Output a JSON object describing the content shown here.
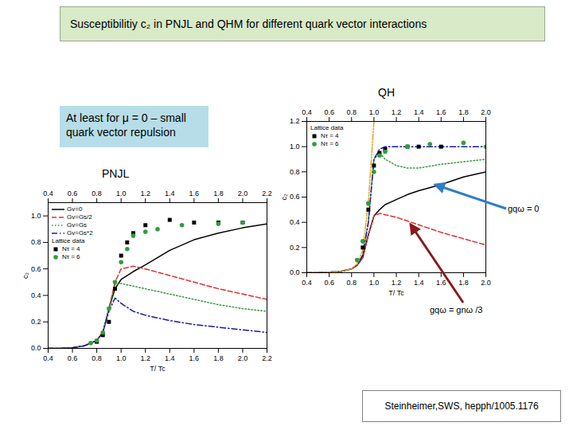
{
  "slide": {
    "title": "Susceptibilitiy c₂ in PNJL and QHM for different quark vector interactions",
    "note": "At least for μ = 0 – small quark vector repulsion",
    "citation": "Steinheimer,SWS,  hepph/1005.1176"
  },
  "chart_data": [
    {
      "type": "line",
      "title": "QH",
      "x_label": "T/ Tc",
      "y_label": "c₂",
      "xlim": [
        0.4,
        2.0
      ],
      "xticks": [
        0.4,
        0.6,
        0.8,
        {
          "value": 1,
          "label": "1.0"
        },
        1.2,
        1.4,
        1.6,
        1.8,
        {
          "value": 2,
          "label": "2.0"
        }
      ],
      "ylim": [
        0,
        1.2
      ],
      "yticks": [
        {
          "value": 0,
          "label": "0.0"
        },
        0.2,
        0.4,
        0.6,
        0.8,
        {
          "value": 1,
          "label": "1.0"
        },
        1.2
      ],
      "legend": "top-left",
      "legend_title": "Lattice data",
      "annotations": [
        "gqω = 0",
        "gqω = gnω /3"
      ],
      "series": [
        {
          "type": "line",
          "color": "#000000",
          "line_style": "solid",
          "x": [
            0.4,
            0.5,
            0.6,
            0.7,
            0.8,
            0.85,
            0.9,
            0.95,
            1.0,
            1.05,
            1.1,
            1.2,
            1.3,
            1.4,
            1.6,
            1.8,
            2.0
          ],
          "values": [
            0,
            0,
            0.005,
            0.01,
            0.03,
            0.06,
            0.12,
            0.3,
            0.45,
            0.5,
            0.54,
            0.58,
            0.62,
            0.65,
            0.7,
            0.76,
            0.8
          ]
        },
        {
          "type": "line",
          "color": "#e03030",
          "line_style": "dashed",
          "x": [
            0.4,
            0.5,
            0.6,
            0.7,
            0.8,
            0.85,
            0.9,
            0.95,
            1.0,
            1.05,
            1.1,
            1.2,
            1.3,
            1.4,
            1.6,
            1.8,
            2.0
          ],
          "values": [
            0,
            0,
            0.005,
            0.01,
            0.03,
            0.06,
            0.12,
            0.3,
            0.45,
            0.47,
            0.46,
            0.44,
            0.41,
            0.38,
            0.32,
            0.27,
            0.22
          ]
        },
        {
          "type": "line",
          "color": "#339933",
          "line_style": "dotted",
          "x": [
            0.4,
            0.5,
            0.6,
            0.7,
            0.8,
            0.85,
            0.9,
            0.95,
            1.0,
            1.05,
            1.1,
            1.2,
            1.3,
            1.4,
            1.6,
            1.8,
            2.0
          ],
          "values": [
            0,
            0,
            0.005,
            0.01,
            0.03,
            0.06,
            0.14,
            0.4,
            0.9,
            0.95,
            0.9,
            0.85,
            0.83,
            0.83,
            0.86,
            0.88,
            0.9
          ]
        },
        {
          "type": "line",
          "color": "#1a1aa0",
          "line_style": "dashdot",
          "x": [
            0.4,
            0.5,
            0.6,
            0.7,
            0.8,
            0.85,
            0.9,
            0.95,
            1.0,
            1.05,
            1.1,
            1.2,
            1.3,
            1.4,
            1.6,
            1.8,
            2.0
          ],
          "values": [
            0,
            0,
            0.005,
            0.01,
            0.03,
            0.06,
            0.14,
            0.4,
            0.9,
            0.98,
            1.0,
            1.0,
            1.0,
            1.0,
            1.0,
            1.0,
            1.0
          ]
        },
        {
          "type": "line",
          "color": "#e8a020",
          "line_style": "dashdotdot",
          "x": [
            0.4,
            0.5,
            0.6,
            0.7,
            0.8,
            0.85,
            0.9,
            0.95,
            1.0,
            1.05,
            1.1,
            1.2,
            1.3,
            1.4,
            1.6,
            1.8,
            2.0
          ],
          "values": [
            0,
            0,
            0.005,
            0.01,
            0.03,
            0.07,
            0.18,
            0.55,
            1.2,
            null,
            null,
            null,
            null,
            null,
            null,
            null,
            null
          ]
        },
        {
          "type": "scatter",
          "name": "Nτ = 4",
          "color": "#000000",
          "marker": "square",
          "x": [
            0.9,
            0.95,
            1.0,
            1.05,
            1.1,
            1.3,
            1.4,
            1.6
          ],
          "values": [
            0.2,
            0.5,
            0.85,
            0.95,
            0.98,
            1.0,
            1.0,
            1.0
          ]
        },
        {
          "type": "scatter",
          "name": "Nτ = 6",
          "color": "#2e9e3e",
          "marker": "circle",
          "x": [
            0.85,
            0.9,
            0.95,
            1.0,
            1.05,
            1.1,
            1.3,
            1.5,
            1.8,
            2.0
          ],
          "values": [
            0.1,
            0.25,
            0.55,
            0.8,
            0.93,
            0.96,
            1.0,
            1.02,
            1.03,
            1.0
          ]
        }
      ]
    },
    {
      "type": "line",
      "title": "PNJL",
      "x_label": "T/ Tc",
      "y_label": "c₂",
      "xlim": [
        0.4,
        2.2
      ],
      "xticks": [
        0.4,
        0.6,
        0.8,
        {
          "value": 1,
          "label": "1.0"
        },
        1.2,
        1.4,
        1.6,
        1.8,
        {
          "value": 2,
          "label": "2.0"
        },
        2.2
      ],
      "ylim": [
        0,
        1.1
      ],
      "yticks": [
        {
          "value": 0,
          "label": "0.0"
        },
        0.2,
        0.4,
        0.6,
        0.8,
        {
          "value": 1,
          "label": "1.0"
        }
      ],
      "legend": "top-left",
      "legend_title": "Lattice data",
      "series": [
        {
          "type": "line",
          "name": "Gv=0",
          "color": "#000000",
          "line_style": "solid",
          "x": [
            0.4,
            0.5,
            0.6,
            0.7,
            0.8,
            0.85,
            0.9,
            0.95,
            1.0,
            1.1,
            1.2,
            1.4,
            1.6,
            1.8,
            2.0,
            2.2
          ],
          "values": [
            0,
            0,
            0.005,
            0.02,
            0.06,
            0.12,
            0.3,
            0.45,
            0.52,
            0.58,
            0.63,
            0.74,
            0.82,
            0.87,
            0.91,
            0.94
          ]
        },
        {
          "type": "line",
          "name": "Gv=Gs/2",
          "color": "#e03030",
          "line_style": "dashed",
          "x": [
            0.4,
            0.5,
            0.6,
            0.7,
            0.8,
            0.85,
            0.9,
            0.95,
            1.0,
            1.1,
            1.2,
            1.4,
            1.6,
            1.8,
            2.0,
            2.2
          ],
          "values": [
            0,
            0,
            0.005,
            0.02,
            0.06,
            0.12,
            0.3,
            0.5,
            0.6,
            0.62,
            0.6,
            0.55,
            0.5,
            0.45,
            0.41,
            0.37
          ]
        },
        {
          "type": "line",
          "name": "Gv=Gs",
          "color": "#339933",
          "line_style": "dotted",
          "x": [
            0.4,
            0.5,
            0.6,
            0.7,
            0.8,
            0.85,
            0.9,
            0.95,
            1.0,
            1.1,
            1.2,
            1.4,
            1.6,
            1.8,
            2.0,
            2.2
          ],
          "values": [
            0,
            0,
            0.005,
            0.02,
            0.06,
            0.12,
            0.3,
            0.48,
            0.49,
            0.47,
            0.45,
            0.41,
            0.37,
            0.33,
            0.3,
            0.28
          ]
        },
        {
          "type": "line",
          "name": "Gv=Gs*2",
          "color": "#1a1aa0",
          "line_style": "dashdot",
          "x": [
            0.4,
            0.5,
            0.6,
            0.7,
            0.8,
            0.85,
            0.9,
            0.95,
            1.0,
            1.1,
            1.2,
            1.4,
            1.6,
            1.8,
            2.0,
            2.2
          ],
          "values": [
            0,
            0,
            0.005,
            0.02,
            0.06,
            0.12,
            0.28,
            0.38,
            0.34,
            0.28,
            0.25,
            0.21,
            0.18,
            0.16,
            0.14,
            0.12
          ]
        },
        {
          "type": "scatter",
          "name": "Nτ = 4",
          "color": "#000000",
          "marker": "square",
          "x": [
            0.8,
            0.85,
            0.9,
            0.95,
            1.0,
            1.05,
            1.1,
            1.2,
            1.4,
            1.6,
            1.8,
            2.0
          ],
          "values": [
            0.05,
            0.1,
            0.2,
            0.45,
            0.7,
            0.8,
            0.87,
            0.93,
            0.97,
            0.95,
            0.95,
            0.95
          ]
        },
        {
          "type": "scatter",
          "name": "Nτ = 6",
          "color": "#2e9e3e",
          "marker": "circle",
          "x": [
            0.75,
            0.8,
            0.85,
            0.9,
            0.95,
            1.0,
            1.05,
            1.1,
            1.2,
            1.3,
            1.5,
            1.8,
            2.0
          ],
          "values": [
            0.04,
            0.06,
            0.12,
            0.3,
            0.5,
            0.65,
            0.75,
            0.85,
            0.88,
            0.9,
            0.93,
            0.94,
            0.95
          ]
        }
      ]
    }
  ]
}
